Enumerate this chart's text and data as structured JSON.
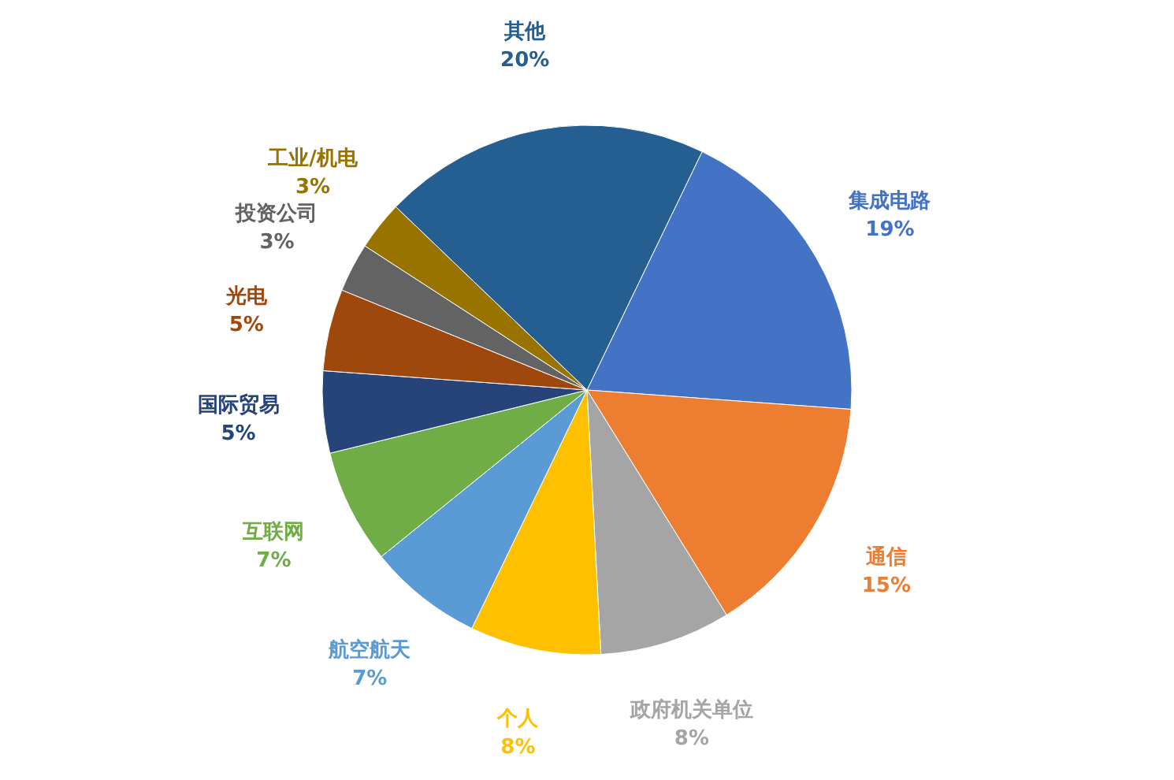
{
  "chart_data": {
    "type": "pie",
    "categories": [
      "集成电路",
      "通信",
      "政府机关单位",
      "个人",
      "航空航天",
      "互联网",
      "国际贸易",
      "光电",
      "投资公司",
      "工业/机电",
      "其他"
    ],
    "values": [
      19,
      15,
      8,
      8,
      7,
      7,
      5,
      5,
      3,
      3,
      20
    ],
    "colors": [
      "#4472c4",
      "#ed7d31",
      "#a5a5a5",
      "#ffc000",
      "#5b9bd5",
      "#70ad47",
      "#264478",
      "#9e480e",
      "#636363",
      "#997300",
      "#255e91"
    ],
    "value_labels": [
      "19%",
      "15%",
      "8%",
      "8%",
      "7%",
      "7%",
      "5%",
      "5%",
      "3%",
      "3%",
      "20%"
    ]
  }
}
